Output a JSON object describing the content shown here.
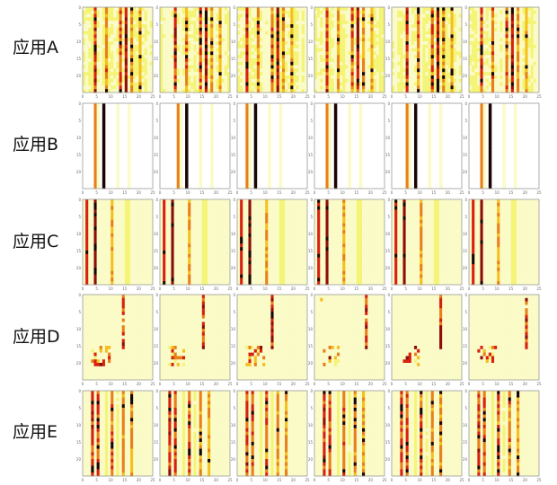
{
  "chart_data": {
    "type": "heatmap",
    "rows": [
      {
        "label": "应用A",
        "pattern": "A"
      },
      {
        "label": "应用B",
        "pattern": "B"
      },
      {
        "label": "应用C",
        "pattern": "C"
      },
      {
        "label": "应用D",
        "pattern": "D"
      },
      {
        "label": "应用E",
        "pattern": "E"
      }
    ],
    "panels_per_row": 6,
    "grid_size": [
      25,
      25
    ],
    "x_ticks": [
      "0",
      "5",
      "10",
      "15",
      "20",
      "25"
    ],
    "y_ticks": [
      "0",
      "5",
      "10",
      "15",
      "20"
    ],
    "colormap": [
      "#ffffff",
      "#fbfbc8",
      "#f4f478",
      "#f4c020",
      "#e8801a",
      "#d82010",
      "#8c0e0a",
      "#1a0505"
    ]
  }
}
